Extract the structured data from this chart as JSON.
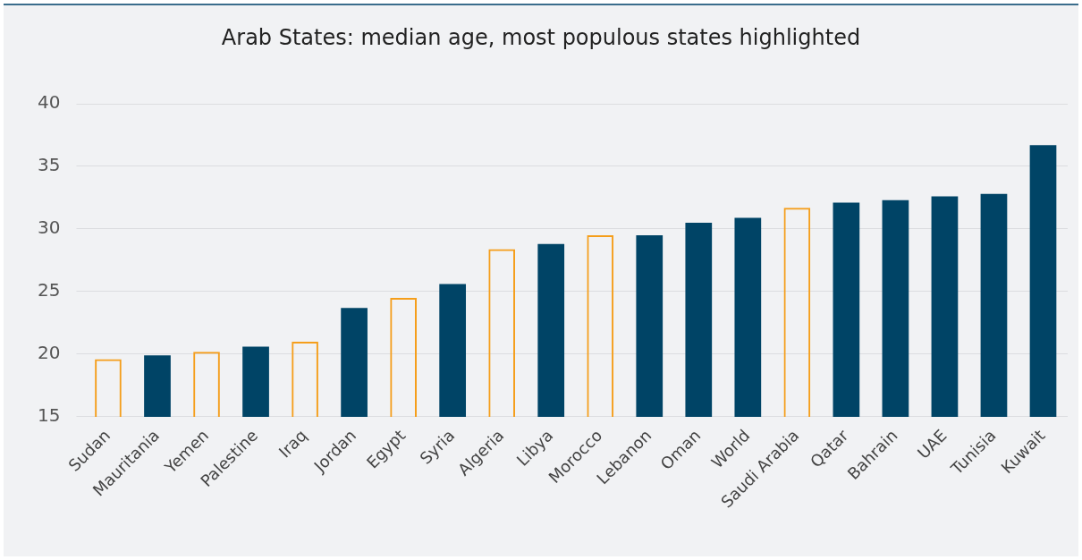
{
  "chart_data": {
    "type": "bar",
    "title": "Arab States: median age, most populous states highlighted",
    "categories": [
      "Sudan",
      "Mauritania",
      "Yemen",
      "Palestine",
      "Iraq",
      "Jordan",
      "Egypt",
      "Syria",
      "Algeria",
      "Libya",
      "Morocco",
      "Lebanon",
      "Oman",
      "World",
      "Saudi Arabia",
      "Qatar",
      "Bahrain",
      "UAE",
      "Tunisia",
      "Kuwait"
    ],
    "series": [
      {
        "color": "#004466",
        "values": [
          null,
          19.9,
          null,
          20.6,
          null,
          23.7,
          null,
          25.6,
          null,
          28.8,
          null,
          29.5,
          30.5,
          30.9,
          null,
          32.1,
          32.3,
          32.6,
          32.8,
          36.7
        ]
      },
      {
        "color": "#f59e1b",
        "values": [
          19.6,
          null,
          20.2,
          null,
          21.0,
          null,
          24.5,
          null,
          28.4,
          null,
          29.5,
          null,
          null,
          null,
          31.7,
          null,
          null,
          null,
          null,
          null
        ]
      }
    ],
    "ylim": [
      15,
      40
    ],
    "yticks": [
      15,
      20,
      25,
      30,
      35,
      40
    ],
    "grid": "y"
  }
}
